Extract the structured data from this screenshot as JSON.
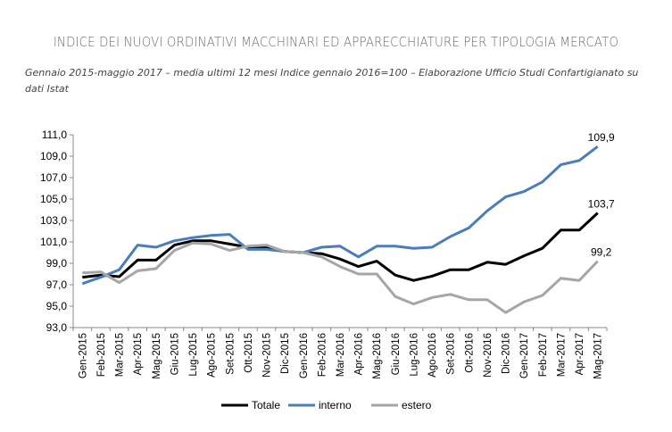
{
  "chart_data": {
    "type": "line",
    "title": "INDICE DEI NUOVI ORDINATIVI MACCHINARI ED APPARECCHIATURE PER TIPOLOGIA MERCATO",
    "subtitle": "Gennaio 2015-maggio 2017 – media ultimi 12 mesi   Indice gennaio 2016=100 – Elaborazione Ufficio Studi Confartigianato su dati Istat",
    "categories": [
      "Gen-2015",
      "Feb-2015",
      "Mar-2015",
      "Apr-2015",
      "Mag-2015",
      "Giu-2015",
      "Lug-2015",
      "Ago-2015",
      "Set-2015",
      "Ott-2015",
      "Nov-2015",
      "Dic-2015",
      "Gen-2016",
      "Feb-2016",
      "Mar-2016",
      "Apr-2016",
      "Mag-2016",
      "Giu-2016",
      "Lug-2016",
      "Ago-2016",
      "Set-2016",
      "Ott-2016",
      "Nov-2016",
      "Dic-2016",
      "Gen-2017",
      "Feb-2017",
      "Mar-2017",
      "Apr-2017",
      "Mag-2017"
    ],
    "ylim": [
      93,
      111
    ],
    "yticks": [
      "93,0",
      "95,0",
      "97,0",
      "99,0",
      "101,0",
      "103,0",
      "105,0",
      "107,0",
      "109,0",
      "111,0"
    ],
    "grid": false,
    "legend": "bottom",
    "series": [
      {
        "name": "Totale",
        "color": "#000000",
        "end_label": "103,7",
        "values": [
          97.7,
          97.9,
          97.75,
          99.3,
          99.3,
          100.7,
          101.1,
          101.1,
          100.8,
          100.5,
          100.5,
          100.1,
          100.0,
          99.9,
          99.4,
          98.7,
          99.2,
          97.9,
          97.4,
          97.8,
          98.4,
          98.4,
          99.1,
          98.9,
          99.7,
          100.4,
          102.1,
          102.1,
          103.7
        ]
      },
      {
        "name": "interno",
        "color": "#4a7ebb",
        "end_label": "109,9",
        "values": [
          97.1,
          97.7,
          98.4,
          100.7,
          100.5,
          101.1,
          101.4,
          101.6,
          101.7,
          100.3,
          100.3,
          100.1,
          100.0,
          100.5,
          100.6,
          99.6,
          100.6,
          100.6,
          100.4,
          100.5,
          101.5,
          102.3,
          103.9,
          105.2,
          105.7,
          106.6,
          108.2,
          108.6,
          109.9
        ]
      },
      {
        "name": "estero",
        "color": "#a6a6a6",
        "end_label": "99,2",
        "values": [
          98.1,
          98.2,
          97.2,
          98.3,
          98.5,
          100.2,
          100.9,
          100.8,
          100.2,
          100.6,
          100.7,
          100.1,
          100.0,
          99.6,
          98.7,
          98.0,
          98.0,
          95.9,
          95.2,
          95.8,
          96.1,
          95.6,
          95.6,
          94.4,
          95.4,
          96.0,
          97.6,
          97.4,
          99.2
        ]
      }
    ]
  }
}
